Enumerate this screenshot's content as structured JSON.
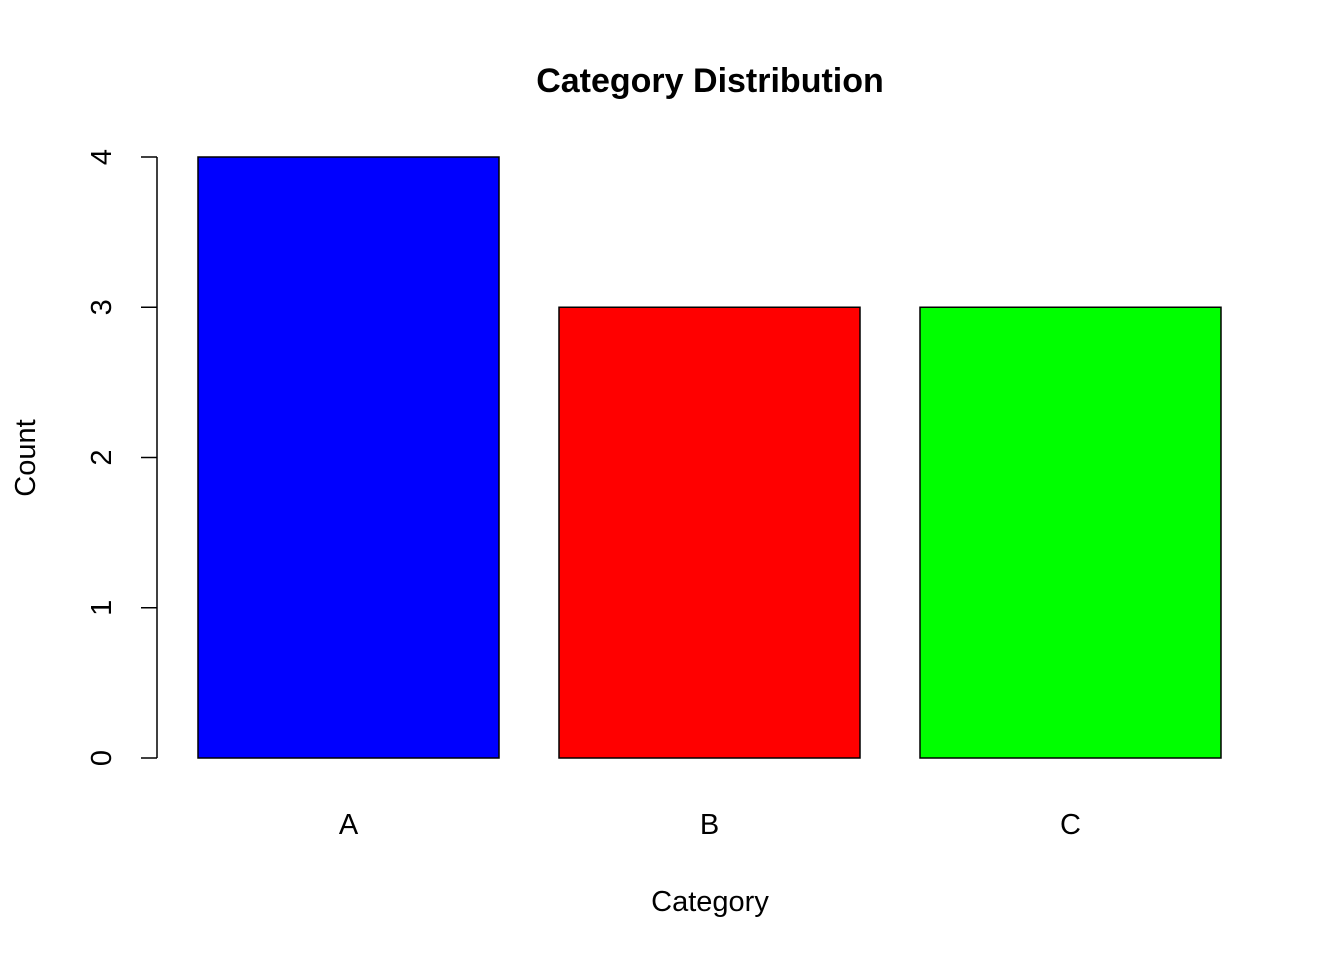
{
  "chart_data": {
    "type": "bar",
    "title": "Category Distribution",
    "xlabel": "Category",
    "ylabel": "Count",
    "categories": [
      "A",
      "B",
      "C"
    ],
    "values": [
      4,
      3,
      3
    ],
    "colors": [
      "#0000ff",
      "#ff0000",
      "#00ff00"
    ],
    "ylim": [
      0,
      4
    ],
    "yticks": [
      0,
      1,
      2,
      3,
      4
    ],
    "grid": false,
    "legend": "none"
  }
}
